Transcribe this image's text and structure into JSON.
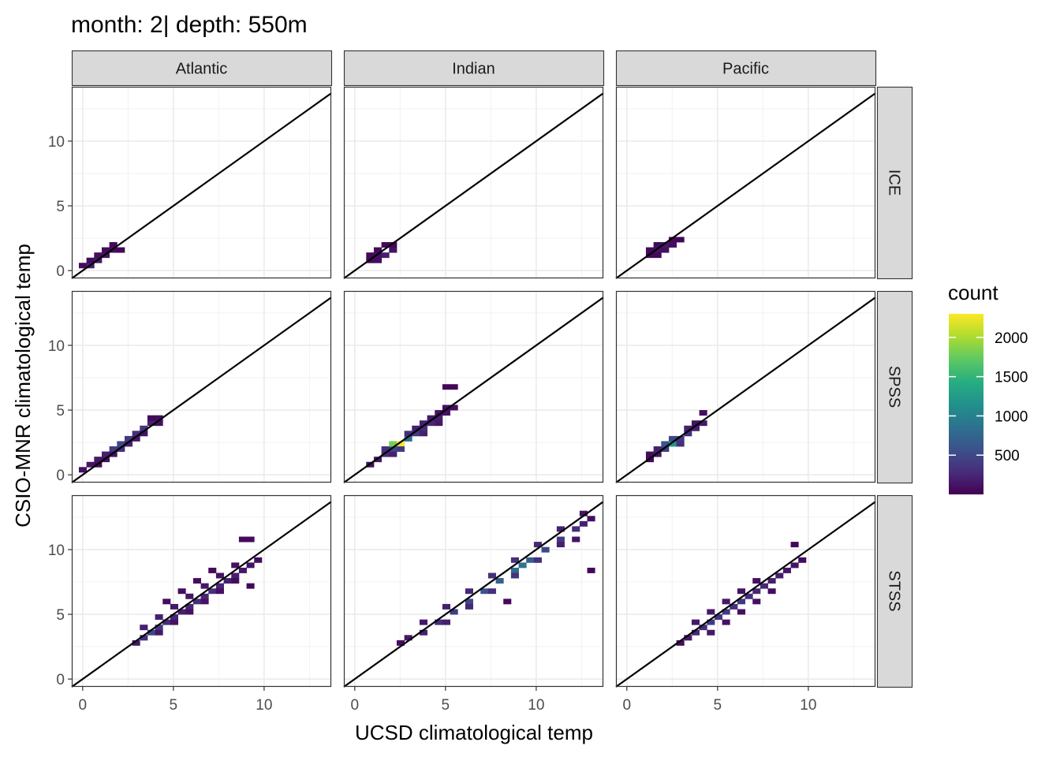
{
  "title": "month: 2| depth: 550m",
  "chart_data": {
    "type": "heatmap",
    "title": "month: 2| depth: 550m",
    "xlabel": "UCSD climatological temp",
    "ylabel": "CSIO-MNR climatological temp",
    "xlim": [
      -0.6,
      13.7
    ],
    "ylim": [
      -0.6,
      14.2
    ],
    "x_ticks": [
      0,
      5,
      10
    ],
    "y_ticks": [
      0,
      5,
      10
    ],
    "grid": true,
    "reference_line": {
      "slope": 1,
      "intercept": 0
    },
    "facet_columns": [
      "Atlantic",
      "Indian",
      "Pacific"
    ],
    "facet_rows": [
      "ICE",
      "SPSS",
      "STSS"
    ],
    "legend": {
      "title": "count",
      "position": "right",
      "ticks": [
        500,
        1000,
        1500,
        2000
      ],
      "range": [
        0,
        2300
      ],
      "colormap": [
        "#440154",
        "#472d7b",
        "#3b528b",
        "#2c728e",
        "#21918c",
        "#28ae80",
        "#5ec962",
        "#addc30",
        "#fde725"
      ]
    },
    "bin_width": [
      0.42,
      0.4
    ],
    "panels": [
      {
        "col": "Atlantic",
        "row": "ICE",
        "bins": [
          [
            0,
            0.4,
            60
          ],
          [
            0.42,
            0.4,
            200
          ],
          [
            0.84,
            0.8,
            180
          ],
          [
            1.26,
            1.2,
            120
          ],
          [
            1.68,
            1.6,
            80
          ],
          [
            0.42,
            0.8,
            60
          ],
          [
            1.26,
            1.6,
            60
          ],
          [
            1.68,
            2.0,
            50
          ],
          [
            2.1,
            1.6,
            40
          ],
          [
            0.84,
            1.2,
            80
          ]
        ]
      },
      {
        "col": "Pacific",
        "row": "ICE",
        "bins": [
          [
            1.26,
            1.6,
            60
          ],
          [
            1.68,
            1.6,
            120
          ],
          [
            2.1,
            1.6,
            100
          ],
          [
            2.1,
            2.0,
            150
          ],
          [
            2.52,
            2.0,
            90
          ],
          [
            2.52,
            2.4,
            60
          ],
          [
            1.68,
            2.0,
            60
          ],
          [
            2.94,
            2.4,
            40
          ],
          [
            1.26,
            1.2,
            40
          ],
          [
            1.68,
            1.2,
            40
          ]
        ]
      },
      {
        "col": "Indian",
        "row": "ICE",
        "bins": [
          [
            0.84,
            0.8,
            60
          ],
          [
            1.26,
            0.8,
            80
          ],
          [
            1.68,
            1.2,
            200
          ],
          [
            2.1,
            1.6,
            120
          ],
          [
            1.26,
            1.2,
            100
          ],
          [
            0.84,
            1.2,
            60
          ],
          [
            1.68,
            2.0,
            60
          ],
          [
            2.1,
            2.0,
            50
          ],
          [
            1.26,
            1.6,
            50
          ]
        ]
      },
      {
        "col": "Atlantic",
        "row": "SPSS",
        "bins": [
          [
            0,
            0.4,
            100
          ],
          [
            0.42,
            0.8,
            120
          ],
          [
            0.84,
            1.2,
            150
          ],
          [
            1.26,
            1.2,
            100
          ],
          [
            1.26,
            1.6,
            200
          ],
          [
            1.68,
            2.0,
            400
          ],
          [
            2.1,
            2.0,
            300
          ],
          [
            2.1,
            2.4,
            500
          ],
          [
            2.52,
            2.8,
            400
          ],
          [
            2.94,
            3.2,
            300
          ],
          [
            3.36,
            3.6,
            350
          ],
          [
            3.78,
            4.0,
            200
          ],
          [
            4.2,
            4.0,
            100
          ],
          [
            4.2,
            4.4,
            80
          ],
          [
            0.84,
            0.8,
            80
          ],
          [
            1.68,
            1.6,
            120
          ],
          [
            2.52,
            2.4,
            200
          ],
          [
            2.94,
            2.8,
            150
          ],
          [
            3.36,
            3.2,
            120
          ],
          [
            3.78,
            4.4,
            60
          ]
        ]
      },
      {
        "col": "Indian",
        "row": "SPSS",
        "bins": [
          [
            0.84,
            0.8,
            80
          ],
          [
            1.26,
            1.2,
            150
          ],
          [
            1.68,
            1.6,
            300
          ],
          [
            2.1,
            2.0,
            500
          ],
          [
            2.1,
            2.4,
            1800
          ],
          [
            2.52,
            2.4,
            2300
          ],
          [
            2.94,
            2.8,
            800
          ],
          [
            3.36,
            3.2,
            400
          ],
          [
            3.78,
            3.6,
            300
          ],
          [
            4.2,
            4.0,
            250
          ],
          [
            4.62,
            4.4,
            200
          ],
          [
            5.04,
            4.8,
            120
          ],
          [
            5.46,
            5.2,
            80
          ],
          [
            5.04,
            6.8,
            40
          ],
          [
            5.46,
            6.8,
            40
          ],
          [
            1.68,
            2.0,
            300
          ],
          [
            2.52,
            2.0,
            400
          ],
          [
            2.94,
            3.2,
            300
          ],
          [
            3.36,
            3.6,
            200
          ],
          [
            3.78,
            4.0,
            200
          ],
          [
            4.2,
            4.4,
            150
          ],
          [
            4.62,
            4.8,
            100
          ],
          [
            5.04,
            5.2,
            80
          ],
          [
            3.78,
            3.2,
            200
          ],
          [
            4.62,
            4.0,
            150
          ],
          [
            2.1,
            1.6,
            200
          ]
        ]
      },
      {
        "col": "Pacific",
        "row": "SPSS",
        "bins": [
          [
            1.26,
            1.6,
            80
          ],
          [
            1.68,
            1.6,
            150
          ],
          [
            1.68,
            2.0,
            200
          ],
          [
            2.1,
            2.0,
            400
          ],
          [
            2.1,
            2.4,
            600
          ],
          [
            2.52,
            2.4,
            1200
          ],
          [
            2.52,
            2.8,
            500
          ],
          [
            2.94,
            2.8,
            400
          ],
          [
            3.36,
            3.2,
            300
          ],
          [
            3.78,
            3.6,
            200
          ],
          [
            4.2,
            4.0,
            150
          ],
          [
            4.2,
            4.8,
            80
          ],
          [
            2.94,
            2.4,
            300
          ],
          [
            3.36,
            3.6,
            200
          ],
          [
            3.78,
            4.0,
            120
          ],
          [
            1.26,
            1.2,
            60
          ]
        ]
      },
      {
        "col": "Atlantic",
        "row": "STSS",
        "bins": [
          [
            2.94,
            2.8,
            150
          ],
          [
            3.36,
            3.2,
            300
          ],
          [
            3.78,
            3.6,
            500
          ],
          [
            4.2,
            4.0,
            400
          ],
          [
            4.62,
            4.4,
            300
          ],
          [
            5.04,
            4.8,
            250
          ],
          [
            5.46,
            5.2,
            200
          ],
          [
            5.88,
            5.6,
            250
          ],
          [
            6.3,
            6.0,
            300
          ],
          [
            6.72,
            6.4,
            250
          ],
          [
            7.14,
            6.8,
            300
          ],
          [
            7.56,
            7.2,
            250
          ],
          [
            7.98,
            7.6,
            200
          ],
          [
            8.4,
            8.0,
            200
          ],
          [
            8.82,
            8.4,
            150
          ],
          [
            9.24,
            8.8,
            120
          ],
          [
            9.66,
            9.2,
            80
          ],
          [
            8.82,
            10.8,
            60
          ],
          [
            9.24,
            10.8,
            60
          ],
          [
            3.36,
            4.0,
            200
          ],
          [
            4.2,
            4.8,
            200
          ],
          [
            5.04,
            5.6,
            150
          ],
          [
            5.88,
            6.4,
            150
          ],
          [
            6.72,
            7.2,
            150
          ],
          [
            7.56,
            8.0,
            120
          ],
          [
            8.4,
            8.8,
            100
          ],
          [
            4.62,
            6.0,
            80
          ],
          [
            5.46,
            6.8,
            80
          ],
          [
            6.3,
            7.6,
            80
          ],
          [
            7.14,
            8.4,
            60
          ],
          [
            4.2,
            3.6,
            150
          ],
          [
            5.04,
            4.4,
            120
          ],
          [
            5.88,
            5.2,
            120
          ],
          [
            6.72,
            6.0,
            120
          ],
          [
            7.56,
            6.8,
            100
          ],
          [
            8.4,
            7.6,
            80
          ],
          [
            9.24,
            7.2,
            40
          ]
        ]
      },
      {
        "col": "Indian",
        "row": "STSS",
        "bins": [
          [
            2.52,
            2.8,
            80
          ],
          [
            2.94,
            3.2,
            150
          ],
          [
            3.78,
            3.6,
            200
          ],
          [
            4.62,
            4.4,
            300
          ],
          [
            5.46,
            5.2,
            400
          ],
          [
            6.3,
            6.0,
            500
          ],
          [
            7.14,
            6.8,
            600
          ],
          [
            7.98,
            7.6,
            700
          ],
          [
            8.82,
            8.4,
            800
          ],
          [
            9.24,
            8.8,
            900
          ],
          [
            9.66,
            9.2,
            700
          ],
          [
            10.5,
            10.0,
            500
          ],
          [
            11.34,
            10.8,
            400
          ],
          [
            12.18,
            11.6,
            300
          ],
          [
            12.6,
            12.0,
            200
          ],
          [
            12.6,
            12.8,
            120
          ],
          [
            13.02,
            12.4,
            80
          ],
          [
            13.02,
            8.4,
            40
          ],
          [
            3.78,
            4.4,
            150
          ],
          [
            5.04,
            5.6,
            200
          ],
          [
            6.3,
            6.8,
            250
          ],
          [
            7.56,
            8.0,
            300
          ],
          [
            8.82,
            9.2,
            300
          ],
          [
            10.08,
            10.4,
            250
          ],
          [
            11.34,
            11.6,
            200
          ],
          [
            5.04,
            4.4,
            200
          ],
          [
            6.3,
            5.6,
            250
          ],
          [
            7.56,
            6.8,
            300
          ],
          [
            8.82,
            8.0,
            350
          ],
          [
            10.08,
            9.2,
            300
          ],
          [
            11.34,
            10.4,
            200
          ],
          [
            12.18,
            10.8,
            120
          ],
          [
            8.4,
            6.0,
            60
          ]
        ]
      },
      {
        "col": "Pacific",
        "row": "STSS",
        "bins": [
          [
            2.94,
            2.8,
            80
          ],
          [
            3.36,
            3.2,
            150
          ],
          [
            3.78,
            3.6,
            250
          ],
          [
            4.2,
            4.0,
            300
          ],
          [
            4.62,
            4.4,
            400
          ],
          [
            5.04,
            4.8,
            350
          ],
          [
            5.46,
            5.2,
            400
          ],
          [
            5.88,
            5.6,
            300
          ],
          [
            6.3,
            6.0,
            350
          ],
          [
            6.72,
            6.4,
            300
          ],
          [
            7.14,
            6.8,
            250
          ],
          [
            7.56,
            7.2,
            250
          ],
          [
            7.98,
            7.6,
            200
          ],
          [
            8.4,
            8.0,
            200
          ],
          [
            8.82,
            8.4,
            150
          ],
          [
            9.24,
            8.8,
            120
          ],
          [
            9.66,
            9.2,
            80
          ],
          [
            9.24,
            10.4,
            40
          ],
          [
            3.78,
            4.4,
            150
          ],
          [
            4.62,
            5.2,
            150
          ],
          [
            5.46,
            6.0,
            150
          ],
          [
            6.3,
            6.8,
            120
          ],
          [
            7.14,
            7.6,
            100
          ],
          [
            4.62,
            3.6,
            150
          ],
          [
            5.46,
            4.4,
            120
          ],
          [
            6.3,
            5.2,
            100
          ],
          [
            7.14,
            6.0,
            100
          ],
          [
            7.98,
            6.8,
            80
          ]
        ]
      }
    ]
  }
}
